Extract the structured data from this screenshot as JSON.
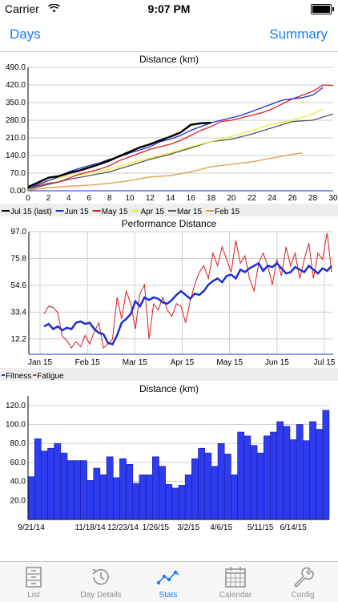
{
  "status_bar": {
    "carrier": "Carrier",
    "time": "9:07 PM"
  },
  "nav": {
    "left_label": "Days",
    "right_label": "Summary"
  },
  "charts": [
    {
      "title": "Distance (km)",
      "y_ticks": [
        "0.00",
        "70.0",
        "140.0",
        "210.0",
        "280.0",
        "350.0",
        "420.0",
        "490.0"
      ],
      "x_ticks": [
        "0",
        "2",
        "4",
        "6",
        "8",
        "10",
        "12",
        "14",
        "16",
        "18",
        "20",
        "22",
        "24",
        "26",
        "28",
        "30"
      ],
      "legend": [
        {
          "label": "Jul 15 (last)",
          "color": "#000000"
        },
        {
          "label": "Jun 15",
          "color": "#1c2fd1"
        },
        {
          "label": "May 15",
          "color": "#d81e1e"
        },
        {
          "label": "Apr 15",
          "color": "#e8ee3a"
        },
        {
          "label": "Mar 15",
          "color": "#555555"
        },
        {
          "label": "Feb 15",
          "color": "#e39a3b"
        }
      ]
    },
    {
      "title": "Performance Distance",
      "y_ticks": [
        "12.2",
        "33.4",
        "54.6",
        "75.8",
        "97.0"
      ],
      "x_ticks": [
        "Jan 15",
        "Feb 15",
        "Mar 15",
        "Apr 15",
        "May 15",
        "Jun 15",
        "Jul 15"
      ],
      "legend": [
        {
          "label": "Fitness",
          "color": "#1c2fd1"
        },
        {
          "label": "Fatigue",
          "color": "#d81e1e"
        }
      ]
    },
    {
      "title": "Distance (km)",
      "y_ticks": [
        "20.0",
        "40.0",
        "60.0",
        "80.0",
        "100.0",
        "120.0"
      ],
      "x_ticks": [
        "9/21/14",
        "11/18/14",
        "12/23/14",
        "1/26/15",
        "3/2/15",
        "4/6/15",
        "5/11/15",
        "6/14/15"
      ]
    }
  ],
  "chart_data": [
    {
      "type": "line",
      "title": "Distance (km)",
      "ylim": [
        0,
        490
      ],
      "xlim": [
        0,
        30
      ],
      "grid": true,
      "legend_position": "bottom",
      "series": [
        {
          "name": "Jul 15 (last)",
          "color": "#000000",
          "x": [
            0,
            1,
            2,
            3,
            4,
            5,
            6,
            7,
            8,
            9,
            10,
            11,
            12,
            13,
            14,
            15,
            16,
            17,
            18
          ],
          "y": [
            15,
            33,
            52,
            58,
            70,
            80,
            92,
            105,
            120,
            138,
            155,
            172,
            185,
            200,
            215,
            232,
            262,
            268,
            270
          ]
        },
        {
          "name": "Jun 15",
          "color": "#1c2fd1",
          "x": [
            0,
            1,
            2,
            3,
            4,
            5,
            6,
            7,
            8,
            9,
            10,
            11,
            12,
            13,
            14,
            15,
            16,
            17,
            18,
            19,
            20,
            21,
            22,
            23,
            24,
            25,
            26,
            27,
            28,
            29
          ],
          "y": [
            8,
            25,
            40,
            55,
            75,
            88,
            100,
            110,
            125,
            135,
            150,
            162,
            175,
            195,
            205,
            220,
            240,
            255,
            270,
            280,
            290,
            300,
            315,
            330,
            345,
            360,
            365,
            370,
            380,
            410
          ]
        },
        {
          "name": "May 15",
          "color": "#d81e1e",
          "x": [
            0,
            1,
            2,
            3,
            4,
            5,
            6,
            7,
            8,
            9,
            10,
            11,
            12,
            13,
            14,
            15,
            16,
            17,
            18,
            19,
            20,
            21,
            22,
            23,
            24,
            25,
            26,
            27,
            28,
            29,
            30
          ],
          "y": [
            10,
            20,
            30,
            35,
            50,
            65,
            75,
            85,
            100,
            120,
            135,
            150,
            165,
            175,
            185,
            200,
            220,
            240,
            255,
            275,
            280,
            290,
            300,
            310,
            325,
            345,
            365,
            380,
            395,
            420,
            418
          ]
        },
        {
          "name": "Apr 15",
          "color": "#e8ee3a",
          "x": [
            0,
            2,
            4,
            6,
            8,
            10,
            12,
            14,
            16,
            18,
            20,
            22,
            24,
            26,
            28,
            29
          ],
          "y": [
            5,
            40,
            60,
            70,
            85,
            110,
            130,
            150,
            175,
            195,
            215,
            240,
            265,
            280,
            305,
            325
          ]
        },
        {
          "name": "Mar 15",
          "color": "#555555",
          "x": [
            0,
            2,
            4,
            6,
            8,
            10,
            12,
            14,
            16,
            18,
            20,
            22,
            24,
            26,
            28,
            30
          ],
          "y": [
            5,
            25,
            45,
            60,
            75,
            100,
            125,
            145,
            170,
            195,
            205,
            225,
            250,
            275,
            280,
            305
          ]
        },
        {
          "name": "Feb 15",
          "color": "#e39a3b",
          "x": [
            0,
            2,
            4,
            6,
            8,
            10,
            12,
            14,
            16,
            18,
            20,
            22,
            24,
            26,
            27
          ],
          "y": [
            2,
            12,
            18,
            22,
            30,
            40,
            55,
            60,
            75,
            95,
            105,
            115,
            130,
            145,
            150
          ]
        }
      ]
    },
    {
      "type": "line",
      "title": "Performance Distance",
      "ylim": [
        0,
        97
      ],
      "grid": true,
      "legend_position": "bottom",
      "x_range_days": [
        0,
        200
      ],
      "series": [
        {
          "name": "Fitness",
          "color": "#1c2fd1",
          "x": [
            10,
            13,
            16,
            19,
            22,
            25,
            28,
            31,
            34,
            37,
            40,
            43,
            46,
            49,
            52,
            55,
            58,
            61,
            64,
            67,
            70,
            73,
            76,
            79,
            82,
            85,
            88,
            91,
            94,
            97,
            100,
            103,
            106,
            109,
            112,
            115,
            118,
            121,
            124,
            127,
            130,
            133,
            136,
            139,
            142,
            145,
            148,
            151,
            154,
            157,
            160,
            163,
            166,
            169,
            172,
            175,
            178,
            181,
            184,
            187,
            190,
            193,
            196,
            199
          ],
          "y": [
            22,
            24,
            20,
            22,
            19,
            21,
            20,
            25,
            26,
            24,
            25,
            20,
            17,
            16,
            9,
            8,
            15,
            25,
            28,
            32,
            42,
            38,
            45,
            43,
            45,
            44,
            41,
            40,
            43,
            47,
            50,
            47,
            44,
            48,
            47,
            50,
            55,
            58,
            60,
            57,
            62,
            63,
            60,
            67,
            65,
            68,
            70,
            72,
            66,
            70,
            69,
            72,
            68,
            64,
            65,
            69,
            67,
            65,
            70,
            67,
            64,
            68,
            66,
            70
          ]
        },
        {
          "name": "Fatigue",
          "color": "#d81e1e",
          "x": [
            10,
            13,
            16,
            19,
            22,
            25,
            28,
            31,
            34,
            37,
            40,
            43,
            46,
            49,
            52,
            55,
            58,
            61,
            64,
            67,
            70,
            73,
            76,
            79,
            82,
            85,
            88,
            91,
            94,
            97,
            100,
            103,
            106,
            109,
            112,
            115,
            118,
            121,
            124,
            127,
            130,
            133,
            136,
            139,
            142,
            145,
            148,
            151,
            154,
            157,
            160,
            163,
            166,
            169,
            172,
            175,
            178,
            181,
            184,
            187,
            190,
            193,
            196,
            199
          ],
          "y": [
            32,
            38,
            37,
            33,
            14,
            11,
            5,
            10,
            6,
            15,
            8,
            18,
            25,
            5,
            8,
            12,
            45,
            28,
            50,
            40,
            20,
            48,
            55,
            12,
            40,
            35,
            45,
            35,
            30,
            40,
            38,
            25,
            42,
            55,
            65,
            70,
            60,
            80,
            70,
            85,
            75,
            65,
            90,
            72,
            78,
            60,
            50,
            72,
            80,
            70,
            55,
            75,
            62,
            85,
            70,
            80,
            60,
            75,
            88,
            60,
            80,
            75,
            96,
            65
          ]
        }
      ]
    },
    {
      "type": "bar",
      "title": "Distance (km)",
      "ylim": [
        0,
        130
      ],
      "grid": true,
      "values": [
        45,
        85,
        72,
        75,
        80,
        70,
        62,
        62,
        62,
        41,
        54,
        47,
        66,
        44,
        64,
        58,
        38,
        47,
        47,
        66,
        56,
        37,
        33,
        36,
        47,
        64,
        75,
        70,
        56,
        80,
        69,
        47,
        92,
        88,
        78,
        70,
        88,
        92,
        103,
        98,
        84,
        100,
        83,
        103,
        95,
        115
      ]
    }
  ],
  "tabs": [
    {
      "label": "List",
      "icon": "cabinet-icon"
    },
    {
      "label": "Day Details",
      "icon": "history-icon"
    },
    {
      "label": "Stats",
      "icon": "stats-icon"
    },
    {
      "label": "Calendar",
      "icon": "calendar-icon"
    },
    {
      "label": "Config",
      "icon": "wrench-icon"
    }
  ],
  "colors": {
    "accent": "#1a7cf5",
    "tab_inactive": "#8e8e93",
    "bar": "#2e3cf0"
  }
}
